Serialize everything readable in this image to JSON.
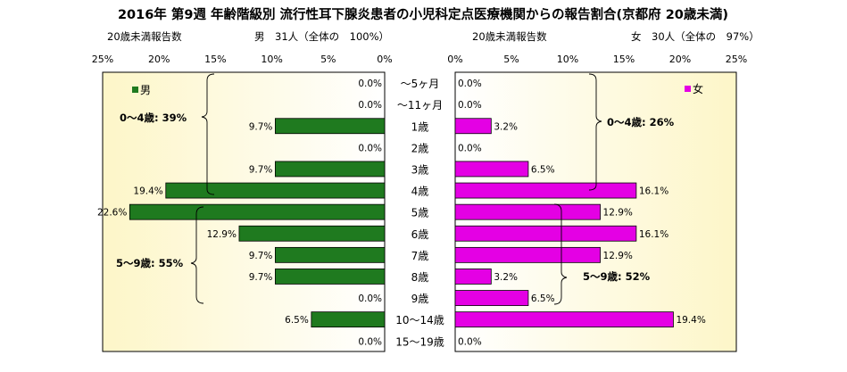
{
  "title": "2016年 第9週 年齢階級別 流行性耳下腺炎患者の小児科定点医療機関からの報告割合(京都府 20歳未満)",
  "colors": {
    "male": "#1f7a1f",
    "female": "#e400e4",
    "plot_bg_start": "#fdf6c8",
    "plot_bg_end": "#ffffff"
  },
  "chart_data": {
    "type": "bar",
    "categories": [
      "～5ヶ月",
      "～11ヶ月",
      "1歳",
      "2歳",
      "3歳",
      "4歳",
      "5歳",
      "6歳",
      "7歳",
      "8歳",
      "9歳",
      "10～14歳",
      "15～19歳"
    ],
    "male": {
      "name": "男",
      "header_left": "20歳未満報告数",
      "header_right": "男　31人（全体の　100%）",
      "values": [
        0.0,
        0.0,
        9.7,
        0.0,
        9.7,
        19.4,
        22.6,
        12.9,
        9.7,
        9.7,
        0.0,
        6.5,
        0.0
      ],
      "labels": [
        "0.0%",
        "0.0%",
        "9.7%",
        "0.0%",
        "9.7%",
        "19.4%",
        "22.6%",
        "12.9%",
        "9.7%",
        "9.7%",
        "0.0%",
        "6.5%",
        "0.0%"
      ],
      "ticks": [
        "25%",
        "20%",
        "15%",
        "10%",
        "5%",
        "0%"
      ],
      "xlim": [
        0,
        25
      ],
      "brace_labels": [
        "0～4歳: 39%",
        "5～9歳: 55%"
      ]
    },
    "female": {
      "name": "女",
      "header_left": "20歳未満報告数",
      "header_right": "女　30人（全体の　97%）",
      "values": [
        0.0,
        0.0,
        3.2,
        0.0,
        6.5,
        16.1,
        12.9,
        16.1,
        12.9,
        3.2,
        6.5,
        19.4,
        0.0
      ],
      "labels": [
        "0.0%",
        "0.0%",
        "3.2%",
        "0.0%",
        "6.5%",
        "16.1%",
        "12.9%",
        "16.1%",
        "12.9%",
        "3.2%",
        "6.5%",
        "19.4%",
        "0.0%"
      ],
      "ticks": [
        "0%",
        "5%",
        "10%",
        "15%",
        "20%",
        "25%"
      ],
      "xlim": [
        0,
        25
      ],
      "brace_labels": [
        "0～4歳: 26%",
        "5～9歳: 52%"
      ]
    }
  }
}
